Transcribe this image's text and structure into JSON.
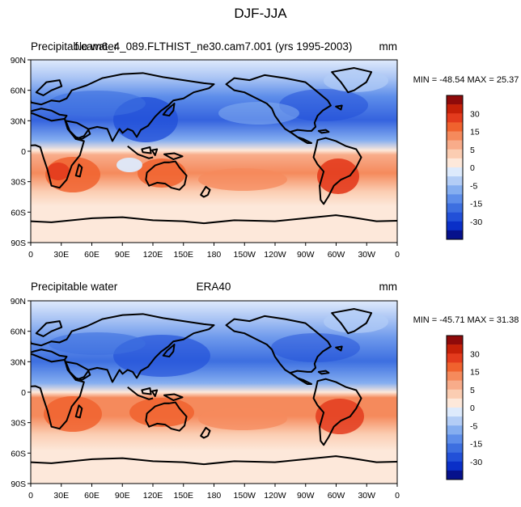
{
  "figure": {
    "title": "DJF-JJA"
  },
  "panels": [
    {
      "left_string": "Precipitable water",
      "center_string": "f.cam6_4_089.FLTHIST_ne30.cam7.001 (yrs 1995-2003)",
      "right_string": "mm",
      "stats": "MIN = -48.54 MAX = 25.37",
      "min": -48.54,
      "max": 25.37
    },
    {
      "left_string": "Precipitable water",
      "center_string": "ERA40",
      "right_string": "mm",
      "stats": "MIN = -45.71 MAX = 31.38",
      "min": -45.71,
      "max": 31.38
    }
  ],
  "axes": {
    "lat_ticks": [
      "90N",
      "60N",
      "30N",
      "0",
      "30S",
      "60S",
      "90S"
    ],
    "lon_ticks": [
      "0",
      "30E",
      "60E",
      "90E",
      "120E",
      "150E",
      "180",
      "150W",
      "120W",
      "90W",
      "60W",
      "30W",
      "0"
    ]
  },
  "colorbar": {
    "labels": [
      "30",
      "15",
      "5",
      "0",
      "-5",
      "-15",
      "-30"
    ],
    "colors": [
      "#8f0a0a",
      "#c52008",
      "#e33b1d",
      "#f0622e",
      "#f58a5c",
      "#f8ac8a",
      "#fbcdb2",
      "#fde8da",
      "#ddeafc",
      "#b3cdf6",
      "#85aef0",
      "#5e8eea",
      "#3d6fe0",
      "#2250d8",
      "#0a2fc8",
      "#06118c"
    ]
  }
}
